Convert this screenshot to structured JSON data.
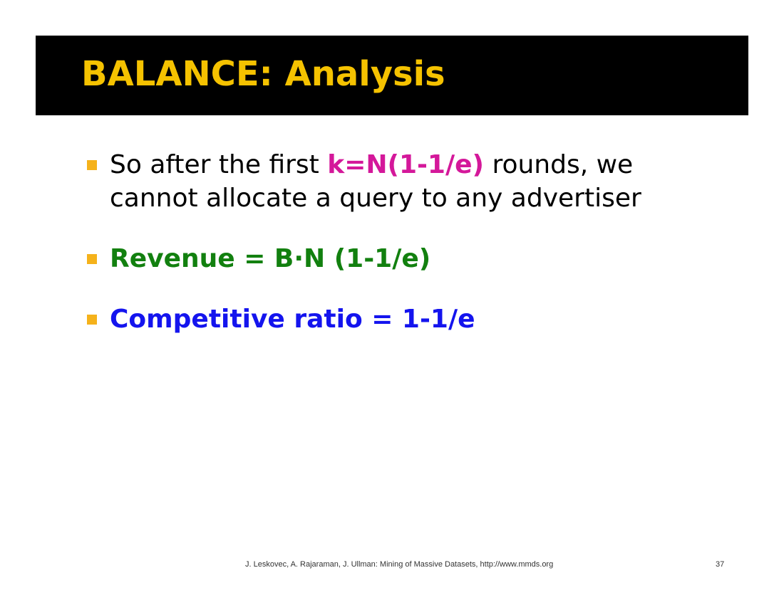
{
  "title": "BALANCE: Analysis",
  "colors": {
    "title": "#f5c200",
    "title_bar": "#000000",
    "bullet_marker": "#f5b21b",
    "highlight_magenta": "#d4189a",
    "revenue_green": "#12800f",
    "ratio_blue": "#1414ee",
    "body_text": "#000000"
  },
  "bullets": [
    {
      "pre": "So after the first ",
      "highlight": "k=N(1-1/e)",
      "post": " rounds, we cannot allocate a query to any advertiser"
    },
    {
      "text": "Revenue = B·N (1-1/e)"
    },
    {
      "text": "Competitive ratio = 1-1/e"
    }
  ],
  "footer": {
    "citation": "J. Leskovec, A. Rajaraman, J. Ullman: Mining of Massive Datasets, http://www.mmds.org",
    "page_number": "37"
  }
}
